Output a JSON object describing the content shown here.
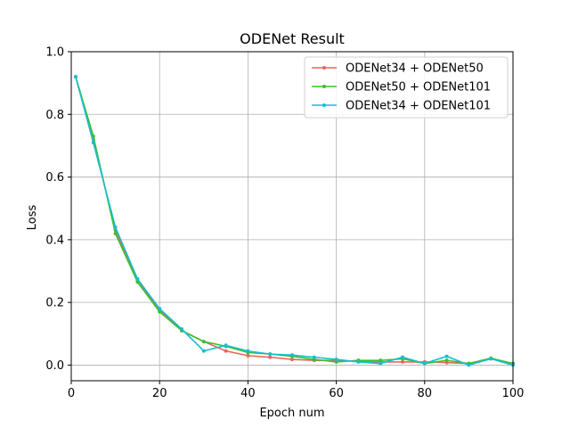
{
  "chart_data": {
    "type": "line",
    "title": "ODENet Result",
    "xlabel": "Epoch num",
    "ylabel": "Loss",
    "xlim": [
      0,
      100
    ],
    "ylim": [
      -0.05,
      1.0
    ],
    "xticks": [
      0,
      20,
      40,
      60,
      80,
      100
    ],
    "yticks": [
      0.0,
      0.2,
      0.4,
      0.6,
      0.8,
      1.0
    ],
    "xtick_labels": [
      "0",
      "20",
      "40",
      "60",
      "80",
      "100"
    ],
    "ytick_labels": [
      "0.0",
      "0.2",
      "0.4",
      "0.6",
      "0.8",
      "1.0"
    ],
    "grid": true,
    "legend_position": "top-right",
    "series": [
      {
        "name": "ODENet34 + ODENet50",
        "color": "#e8675b",
        "x": [
          1,
          5,
          10,
          15,
          20,
          25,
          30,
          35,
          40,
          45,
          50,
          55,
          60,
          65,
          70,
          75,
          80,
          85,
          90,
          95,
          100
        ],
        "y": [
          0.92,
          0.72,
          0.43,
          0.27,
          0.175,
          0.11,
          0.075,
          0.045,
          0.03,
          0.025,
          0.018,
          0.015,
          0.015,
          0.012,
          0.01,
          0.01,
          0.01,
          0.008,
          0.005,
          0.02,
          0.003
        ]
      },
      {
        "name": "ODENet50 + ODENet101",
        "color": "#3dbf2f",
        "x": [
          1,
          5,
          10,
          15,
          20,
          25,
          30,
          35,
          40,
          45,
          50,
          55,
          60,
          65,
          70,
          75,
          80,
          85,
          90,
          95,
          100
        ],
        "y": [
          0.92,
          0.73,
          0.42,
          0.265,
          0.17,
          0.11,
          0.075,
          0.06,
          0.04,
          0.035,
          0.028,
          0.018,
          0.01,
          0.015,
          0.015,
          0.02,
          0.005,
          0.015,
          0.005,
          0.022,
          0.005
        ]
      },
      {
        "name": "ODENet34 + ODENet101",
        "color": "#17becf",
        "x": [
          1,
          5,
          10,
          15,
          20,
          25,
          30,
          35,
          40,
          45,
          50,
          55,
          60,
          65,
          70,
          75,
          80,
          85,
          90,
          95,
          100
        ],
        "y": [
          0.92,
          0.71,
          0.44,
          0.275,
          0.18,
          0.115,
          0.045,
          0.063,
          0.045,
          0.035,
          0.032,
          0.025,
          0.018,
          0.01,
          0.005,
          0.025,
          0.005,
          0.028,
          0.0,
          0.02,
          0.0
        ]
      }
    ]
  }
}
